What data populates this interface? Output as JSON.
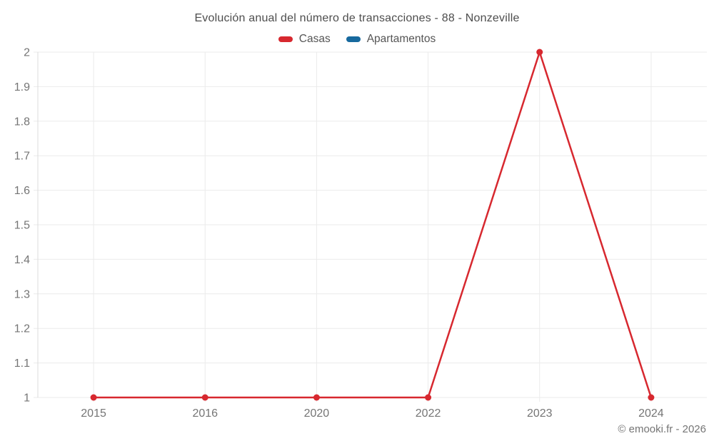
{
  "chart_data": {
    "type": "line",
    "title": "Evolución anual del número de transacciones - 88 - Nonzeville",
    "categories": [
      "2015",
      "2016",
      "2020",
      "2022",
      "2023",
      "2024"
    ],
    "series": [
      {
        "name": "Casas",
        "color": "#d7282f",
        "values": [
          1,
          1,
          1,
          1,
          2,
          1
        ]
      },
      {
        "name": "Apartamentos",
        "color": "#17699e",
        "values": []
      }
    ],
    "y_ticks": [
      1,
      1.1,
      1.2,
      1.3,
      1.4,
      1.5,
      1.6,
      1.7,
      1.8,
      1.9,
      2
    ],
    "ylim": [
      1,
      2
    ],
    "xlabel": "",
    "ylabel": "",
    "grid": true,
    "legend_position": "top"
  },
  "footer": {
    "copyright": "© emooki.fr - 2026"
  },
  "colors": {
    "grid": "#ebebeb",
    "axis": "#dcdcdc",
    "tick_text": "#757575",
    "title_text": "#4d4d4d",
    "legend_text": "#555555",
    "background": "#ffffff"
  }
}
